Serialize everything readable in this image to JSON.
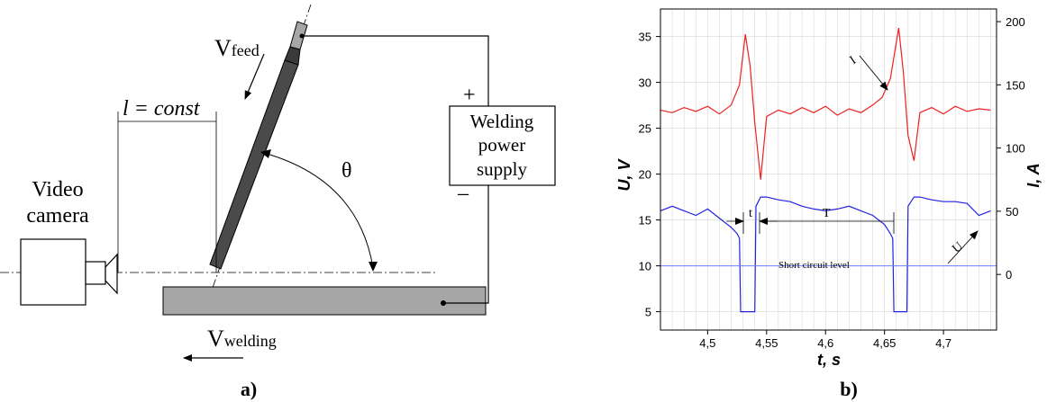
{
  "figure_a": {
    "caption": "a)",
    "v_feed": "V",
    "v_feed_sub": "feed",
    "l_const": "l = const",
    "theta": "θ",
    "plus": "+",
    "minus": "–",
    "power_supply_lines": [
      "Welding",
      "power",
      "supply"
    ],
    "camera_lines": [
      "Video",
      "camera"
    ],
    "v_welding": "V",
    "v_welding_sub": "welding"
  },
  "figure_b": {
    "caption": "b)",
    "colors": {
      "current": "#ee2020",
      "voltage": "#2222dd",
      "short_circuit": "#6b80ff"
    },
    "annotations": {
      "current_label": "I",
      "voltage_label": "U",
      "t_label": "t",
      "T_label": "T",
      "short_circuit_label": "Short circuit level"
    },
    "chart_data": {
      "type": "line",
      "xlabel": "t, s",
      "ylabel_left": "U, V",
      "ylabel_right": "I, A",
      "xlim": [
        4.46,
        4.745
      ],
      "ylim_left": [
        3,
        38
      ],
      "ylim_right": [
        -44,
        210
      ],
      "x_ticks": [
        4.5,
        4.55,
        4.6,
        4.65,
        4.7
      ],
      "x_tick_labels": [
        "4,5",
        "4,55",
        "4,6",
        "4,65",
        "4,7"
      ],
      "y_left_ticks": [
        5,
        10,
        15,
        20,
        25,
        30,
        35
      ],
      "y_left_tick_labels": [
        "5",
        "10",
        "15",
        "20",
        "25",
        "30",
        "35"
      ],
      "y_right_ticks": [
        0,
        50,
        100,
        150,
        200
      ],
      "y_right_tick_labels": [
        "0",
        "50",
        "100",
        "150",
        "200"
      ],
      "grid": true,
      "series": [
        {
          "name": "I",
          "axis": "right",
          "x": [
            4.46,
            4.47,
            4.48,
            4.49,
            4.5,
            4.51,
            4.52,
            4.527,
            4.532,
            4.536,
            4.54,
            4.545,
            4.55,
            4.56,
            4.57,
            4.58,
            4.59,
            4.6,
            4.61,
            4.62,
            4.63,
            4.64,
            4.648,
            4.655,
            4.662,
            4.666,
            4.67,
            4.675,
            4.68,
            4.69,
            4.7,
            4.71,
            4.72,
            4.73,
            4.74
          ],
          "values": [
            130,
            128,
            132,
            129,
            133,
            127,
            134,
            150,
            190,
            165,
            120,
            75,
            125,
            130,
            127,
            132,
            128,
            133,
            126,
            131,
            128,
            134,
            140,
            155,
            195,
            160,
            110,
            90,
            128,
            132,
            127,
            133,
            129,
            131,
            130
          ]
        },
        {
          "name": "U",
          "axis": "left",
          "x": [
            4.46,
            4.47,
            4.48,
            4.49,
            4.5,
            4.51,
            4.52,
            4.525,
            4.527,
            4.528,
            4.54,
            4.541,
            4.545,
            4.55,
            4.56,
            4.57,
            4.58,
            4.59,
            4.6,
            4.61,
            4.62,
            4.63,
            4.64,
            4.65,
            4.655,
            4.657,
            4.658,
            4.669,
            4.67,
            4.675,
            4.68,
            4.69,
            4.7,
            4.71,
            4.72,
            4.73,
            4.74
          ],
          "values": [
            16,
            16.5,
            16,
            15.5,
            16.2,
            15.2,
            14.2,
            13.5,
            13,
            5,
            5,
            16.5,
            17.5,
            17.5,
            17.2,
            17,
            16.5,
            16.2,
            16,
            16.2,
            16.5,
            16,
            15.5,
            14.5,
            13.5,
            13,
            5,
            5,
            16.5,
            17.5,
            17.5,
            17.2,
            17,
            17,
            16.8,
            15.5,
            16
          ]
        },
        {
          "name": "Short circuit level",
          "axis": "left",
          "x": [
            4.46,
            4.745
          ],
          "values": [
            10,
            10
          ]
        }
      ]
    }
  }
}
